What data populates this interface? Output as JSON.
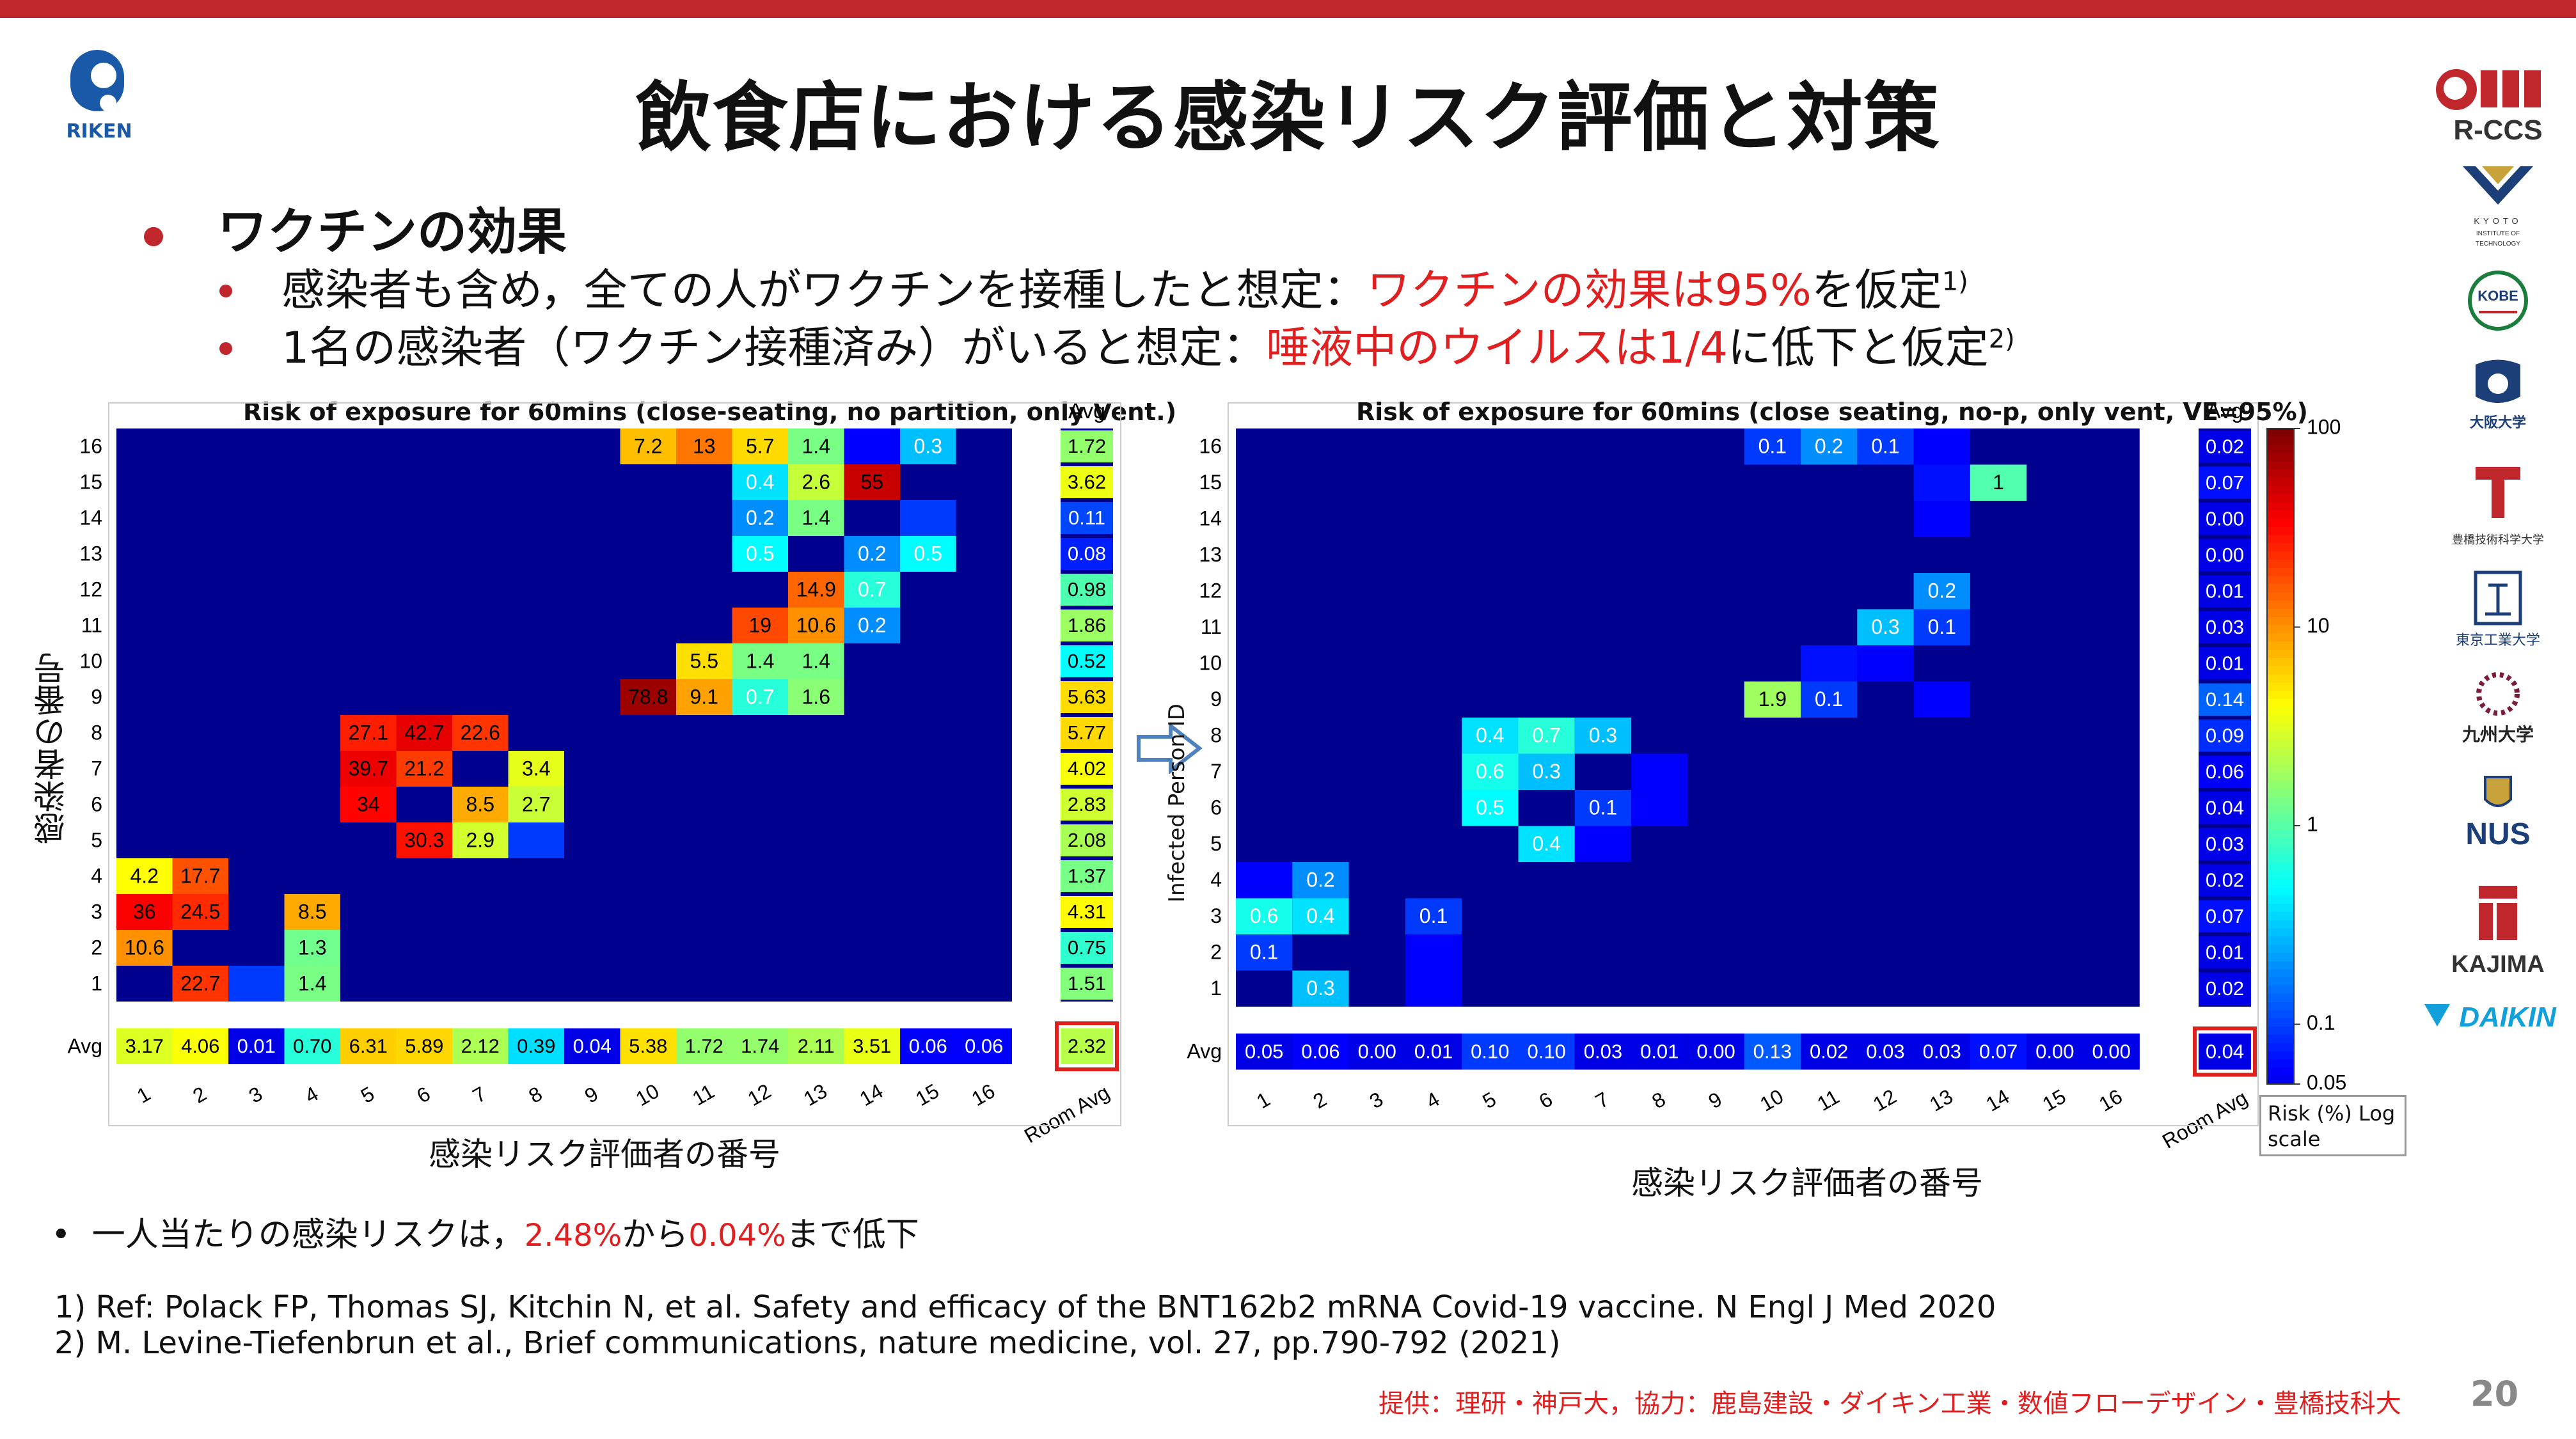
{
  "title": "飲食店における感染リスク評価と対策",
  "logo_left_text": "RIKEN",
  "logos_right": [
    "R-CCS",
    "KYOTO INSTITUTE OF TECHNOLOGY",
    "KOBE",
    "大阪大学",
    "豊橋技術科学大学",
    "東京工業大学",
    "九州大学",
    "NUS",
    "KAJIMA",
    "DAIKIN"
  ],
  "heading": "ワクチンの効果",
  "bullet1_a": "感染者も含め，全ての人がワクチンを接種したと想定：",
  "bullet1_b": "ワクチンの効果は95%",
  "bullet1_c": "を仮定",
  "bullet1_sup": "1)",
  "bullet2_a": "1名の感染者（ワクチン接種済み）がいると想定：",
  "bullet2_b": "唾液中のウイルスは1/4",
  "bullet2_c": "に低下と仮定",
  "bullet2_sup": "2)",
  "left_ylabel": "感染者の番号",
  "left_xlabel": "感染リスク評価者の番号",
  "right_ylabel": "Infected Person ID",
  "right_xlabel": "感染リスク評価者の番号",
  "colorbar_label": "Risk (%) Log scale",
  "note_a": "一人当たりの感染リスクは，",
  "note_b": "2.48%",
  "note_c": "から",
  "note_d": "0.04%",
  "note_e": "まで低下",
  "ref1": "1) Ref: Polack FP, Thomas SJ, Kitchin N, et al. Safety and efficacy of the BNT162b2 mRNA Covid-19 vaccine. N Engl J Med 2020",
  "ref2": "2) M. Levine-Tiefenbrun et al., Brief communications, nature medicine, vol. 27, pp.790-792 (2021)",
  "credit": "提供：理研・神戸大，協力：鹿島建設・ダイキン工業・数値フローデザイン・豊橋技科大",
  "page_number": "20",
  "chart_data": [
    {
      "type": "heatmap",
      "title": "Risk of exposure for 60mins (close-seating, no partition, only Vent.)",
      "x_categories": [
        "1",
        "2",
        "3",
        "4",
        "5",
        "6",
        "7",
        "8",
        "9",
        "10",
        "11",
        "12",
        "13",
        "14",
        "15",
        "16"
      ],
      "y_categories": [
        "1",
        "2",
        "3",
        "4",
        "5",
        "6",
        "7",
        "8",
        "9",
        "10",
        "11",
        "12",
        "13",
        "14",
        "15",
        "16"
      ],
      "color_scale": "log",
      "color_range": [
        0.05,
        100
      ],
      "cells": [
        [
          16,
          10,
          7.2
        ],
        [
          16,
          11,
          13.0
        ],
        [
          16,
          12,
          5.7
        ],
        [
          16,
          13,
          1.4
        ],
        [
          16,
          14,
          0.06
        ],
        [
          16,
          15,
          0.3
        ],
        [
          15,
          12,
          0.4
        ],
        [
          15,
          13,
          2.6
        ],
        [
          15,
          14,
          55.0
        ],
        [
          14,
          12,
          0.2
        ],
        [
          14,
          13,
          1.4
        ],
        [
          14,
          15,
          0.1
        ],
        [
          13,
          12,
          0.5
        ],
        [
          13,
          14,
          0.2
        ],
        [
          13,
          15,
          0.5
        ],
        [
          12,
          13,
          14.9
        ],
        [
          12,
          14,
          0.7
        ],
        [
          11,
          12,
          19.0
        ],
        [
          11,
          13,
          10.6
        ],
        [
          11,
          14,
          0.2
        ],
        [
          10,
          11,
          5.5
        ],
        [
          10,
          12,
          1.4
        ],
        [
          10,
          13,
          1.4
        ],
        [
          9,
          10,
          78.8
        ],
        [
          9,
          11,
          9.1
        ],
        [
          9,
          12,
          0.7
        ],
        [
          9,
          13,
          1.6
        ],
        [
          8,
          5,
          27.1
        ],
        [
          8,
          6,
          42.7
        ],
        [
          8,
          7,
          22.6
        ],
        [
          7,
          5,
          39.7
        ],
        [
          7,
          6,
          21.2
        ],
        [
          7,
          8,
          3.4
        ],
        [
          6,
          5,
          34.0
        ],
        [
          6,
          7,
          8.5
        ],
        [
          6,
          8,
          2.7
        ],
        [
          5,
          6,
          30.3
        ],
        [
          5,
          7,
          2.9
        ],
        [
          5,
          8,
          0.1
        ],
        [
          4,
          1,
          4.2
        ],
        [
          4,
          2,
          17.7
        ],
        [
          3,
          1,
          36.0
        ],
        [
          3,
          2,
          24.5
        ],
        [
          3,
          4,
          8.5
        ],
        [
          2,
          1,
          10.6
        ],
        [
          2,
          4,
          1.3
        ],
        [
          1,
          2,
          22.7
        ],
        [
          1,
          3,
          0.1
        ],
        [
          1,
          4,
          1.4
        ]
      ],
      "show_labels_min": 0.2,
      "row_avg_label": "Avg",
      "row_avg": [
        "1.51",
        "0.75",
        "4.31",
        "1.37",
        "2.08",
        "2.83",
        "4.02",
        "5.77",
        "5.63",
        "0.52",
        "1.86",
        "0.98",
        "0.08",
        "0.11",
        "3.62",
        "1.72"
      ],
      "col_avg_label": "Avg",
      "col_avg": [
        "3.17",
        "4.06",
        "0.01",
        "0.70",
        "6.31",
        "5.89",
        "2.12",
        "0.39",
        "0.04",
        "5.38",
        "1.72",
        "1.74",
        "2.11",
        "3.51",
        "0.06",
        "0.06"
      ],
      "room_avg_label": "Room Avg",
      "room_avg": "2.32"
    },
    {
      "type": "heatmap",
      "title": "Risk of exposure for 60mins (close seating, no-p, only vent, VE=95%)",
      "x_categories": [
        "1",
        "2",
        "3",
        "4",
        "5",
        "6",
        "7",
        "8",
        "9",
        "10",
        "11",
        "12",
        "13",
        "14",
        "15",
        "16"
      ],
      "y_categories": [
        "1",
        "2",
        "3",
        "4",
        "5",
        "6",
        "7",
        "8",
        "9",
        "10",
        "11",
        "12",
        "13",
        "14",
        "15",
        "16"
      ],
      "color_scale": "log",
      "color_range": [
        0.05,
        100
      ],
      "cells": [
        [
          16,
          10,
          0.1
        ],
        [
          16,
          11,
          0.2
        ],
        [
          16,
          12,
          0.1
        ],
        [
          16,
          13,
          0.06
        ],
        [
          15,
          13,
          0.07
        ],
        [
          15,
          14,
          1.0
        ],
        [
          14,
          13,
          0.06
        ],
        [
          12,
          13,
          0.2
        ],
        [
          11,
          12,
          0.3
        ],
        [
          11,
          13,
          0.1
        ],
        [
          10,
          11,
          0.07
        ],
        [
          10,
          12,
          0.06
        ],
        [
          9,
          10,
          1.9
        ],
        [
          9,
          11,
          0.1
        ],
        [
          9,
          13,
          0.06
        ],
        [
          8,
          5,
          0.4
        ],
        [
          8,
          6,
          0.7
        ],
        [
          8,
          7,
          0.3
        ],
        [
          7,
          5,
          0.6
        ],
        [
          7,
          6,
          0.3
        ],
        [
          7,
          8,
          0.06
        ],
        [
          6,
          5,
          0.5
        ],
        [
          6,
          7,
          0.1
        ],
        [
          6,
          8,
          0.06
        ],
        [
          5,
          6,
          0.4
        ],
        [
          5,
          7,
          0.06
        ],
        [
          4,
          1,
          0.06
        ],
        [
          4,
          2,
          0.2
        ],
        [
          3,
          1,
          0.6
        ],
        [
          3,
          2,
          0.4
        ],
        [
          3,
          4,
          0.1
        ],
        [
          2,
          1,
          0.1
        ],
        [
          2,
          4,
          0.06
        ],
        [
          1,
          2,
          0.3
        ],
        [
          1,
          4,
          0.06
        ]
      ],
      "show_labels_min": 0.1,
      "row_avg_label": "Avg",
      "row_avg": [
        "0.02",
        "0.01",
        "0.07",
        "0.02",
        "0.03",
        "0.04",
        "0.06",
        "0.09",
        "0.14",
        "0.01",
        "0.03",
        "0.01",
        "0.00",
        "0.00",
        "0.07",
        "0.02"
      ],
      "col_avg_label": "Avg",
      "col_avg": [
        "0.05",
        "0.06",
        "0.00",
        "0.01",
        "0.10",
        "0.10",
        "0.03",
        "0.01",
        "0.00",
        "0.13",
        "0.02",
        "0.03",
        "0.03",
        "0.07",
        "0.00",
        "0.00"
      ],
      "room_avg_label": "Room Avg",
      "room_avg": "0.04",
      "colorbar_ticks": [
        "100",
        "10",
        "1",
        "0.1",
        "0.05"
      ]
    }
  ]
}
